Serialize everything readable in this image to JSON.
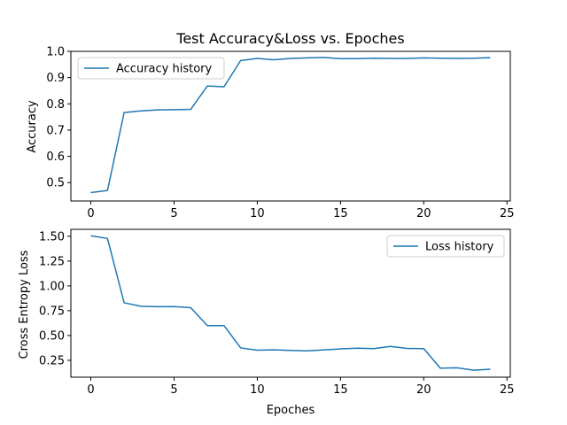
{
  "chart_data": [
    {
      "type": "line",
      "title": "Test Accuracy&Loss vs. Epoches",
      "xlabel": "",
      "ylabel": "Accuracy",
      "xlim": [
        -1.2,
        25.2
      ],
      "ylim": [
        0.43,
        1.0
      ],
      "xticks": [
        0,
        5,
        10,
        15,
        20,
        25
      ],
      "yticks": [
        0.5,
        0.6,
        0.7,
        0.8,
        0.9,
        1.0
      ],
      "ytick_labels": [
        "0.5",
        "0.6",
        "0.7",
        "0.8",
        "0.9",
        "1.0"
      ],
      "grid": false,
      "legend_position": "top-left",
      "series": [
        {
          "name": "Accuracy history",
          "color": "#1f77b4",
          "x": [
            0,
            1,
            2,
            3,
            4,
            5,
            6,
            7,
            8,
            9,
            10,
            11,
            12,
            13,
            14,
            15,
            16,
            17,
            18,
            19,
            20,
            21,
            22,
            23,
            24
          ],
          "y": [
            0.462,
            0.47,
            0.767,
            0.773,
            0.777,
            0.778,
            0.779,
            0.868,
            0.865,
            0.965,
            0.973,
            0.968,
            0.973,
            0.975,
            0.977,
            0.972,
            0.972,
            0.974,
            0.973,
            0.973,
            0.975,
            0.974,
            0.973,
            0.974,
            0.976
          ]
        }
      ]
    },
    {
      "type": "line",
      "title": "",
      "xlabel": "Epoches",
      "ylabel": "Cross Entropy Loss",
      "xlim": [
        -1.2,
        25.2
      ],
      "ylim": [
        0.08,
        1.57
      ],
      "xticks": [
        0,
        5,
        10,
        15,
        20,
        25
      ],
      "yticks": [
        0.25,
        0.5,
        0.75,
        1.0,
        1.25,
        1.5
      ],
      "ytick_labels": [
        "0.25",
        "0.50",
        "0.75",
        "1.00",
        "1.25",
        "1.50"
      ],
      "grid": false,
      "legend_position": "top-right",
      "series": [
        {
          "name": "Loss history",
          "color": "#1f77b4",
          "x": [
            0,
            1,
            2,
            3,
            4,
            5,
            6,
            7,
            8,
            9,
            10,
            11,
            12,
            13,
            14,
            15,
            16,
            17,
            18,
            19,
            20,
            21,
            22,
            23,
            24
          ],
          "y": [
            1.505,
            1.478,
            0.83,
            0.795,
            0.79,
            0.792,
            0.78,
            0.6,
            0.6,
            0.375,
            0.352,
            0.355,
            0.35,
            0.345,
            0.355,
            0.365,
            0.372,
            0.368,
            0.39,
            0.37,
            0.368,
            0.17,
            0.175,
            0.15,
            0.16
          ]
        }
      ]
    }
  ]
}
